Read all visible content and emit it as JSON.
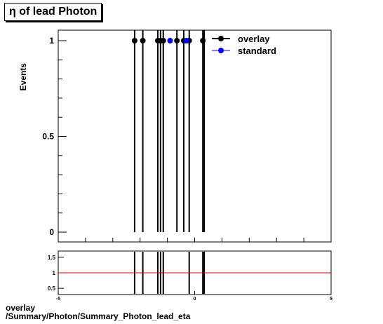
{
  "title": "η of lead Photon",
  "footer": {
    "line1": "overlay",
    "line2": "/Summary/Photon/Summary_Photon_lead_eta"
  },
  "legend": {
    "position": "top-right",
    "entries": [
      {
        "label": "overlay",
        "color": "#000000"
      },
      {
        "label": "standard",
        "color": "#0000ff"
      }
    ]
  },
  "chart_data": [
    {
      "type": "scatter",
      "panel": "main",
      "ylabel": "Events",
      "xlim": [
        -5,
        5
      ],
      "ylim": [
        0,
        1
      ],
      "y_ticks": [
        "0",
        "0.5",
        "1"
      ],
      "series": [
        {
          "name": "overlay",
          "color": "#000000",
          "x": [
            -2.2,
            -1.9,
            -1.35,
            -1.25,
            -1.15,
            -0.65,
            -0.4,
            -0.2,
            0.3
          ],
          "y": [
            1,
            1,
            1,
            1,
            1,
            1,
            1,
            1,
            1
          ]
        },
        {
          "name": "standard",
          "color": "#0000ff",
          "x": [
            -0.9,
            -0.3
          ],
          "y": [
            1,
            1
          ]
        }
      ],
      "histogram_lines_x": [
        -2.2,
        -1.9,
        -1.35,
        -1.25,
        -1.15,
        -0.65,
        -0.4,
        -0.2,
        0.3,
        0.35
      ]
    },
    {
      "type": "line",
      "panel": "ratio",
      "xlim": [
        -5,
        5
      ],
      "ylim": [
        0.3,
        1.7
      ],
      "y_ticks": [
        "0.5",
        "1",
        "1.5"
      ],
      "x_ticks": [
        "-5",
        "0",
        "5"
      ],
      "reference_line": {
        "y": 1,
        "color": "#cc0000"
      },
      "lines_x": [
        -2.2,
        -1.9,
        -1.35,
        -1.25,
        -1.15,
        -0.2,
        0.3,
        0.35
      ]
    }
  ]
}
